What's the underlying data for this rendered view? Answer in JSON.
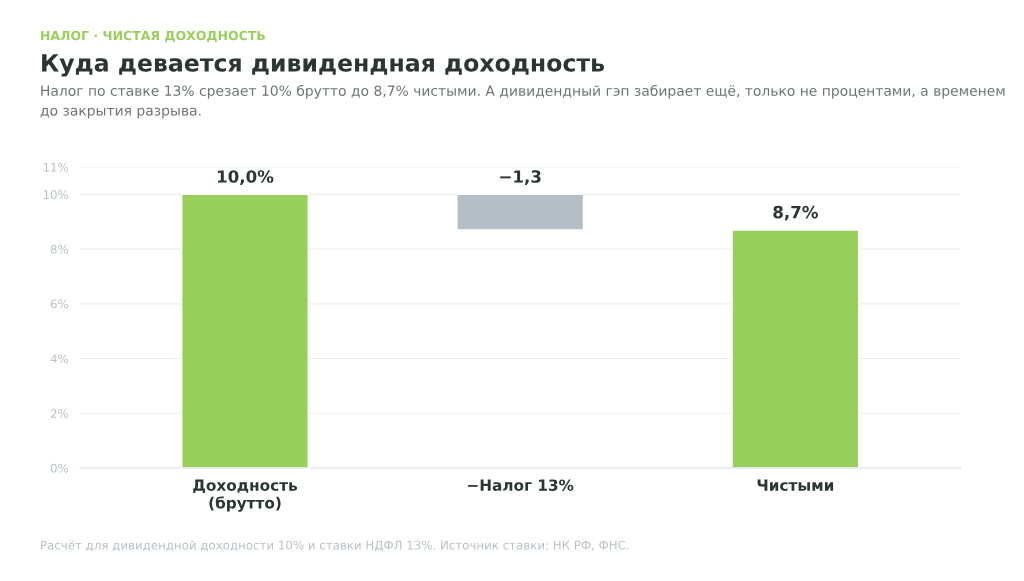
{
  "chart_data": {
    "type": "bar",
    "title": "Куда девается дивидендная доходность",
    "subtitle": "Налог по ставке 13% срезает 10% брутто до 8,7% чистыми. А дивидендный гэп забирает ещё, только не процентами, а временем до закрытия разрыва.",
    "annotations": [
      "НАЛОГ · ЧИСТАЯ ДОХОДНОСТЬ",
      "Расчёт для дивидендной доходности 10% и ставки НДФЛ 13%. Источник ставки: НК РФ, ФНС."
    ],
    "categories": [
      "Доходность\n(брутто)",
      "−Налог 13%",
      "Чистыми"
    ],
    "values": [
      10.0,
      -1.3,
      8.7
    ],
    "base": [
      0,
      10.0,
      0
    ],
    "colors": [
      "#97cf5a",
      "#b4bec5",
      "#97cf5a"
    ],
    "value_labels": [
      "10,0%",
      "−1,3",
      "8,7%"
    ],
    "ylim": [
      0,
      11
    ],
    "yticks": [
      {
        "value": 0,
        "label": "0%"
      },
      {
        "value": 2,
        "label": "2%"
      },
      {
        "value": 4,
        "label": "4%"
      },
      {
        "value": 6,
        "label": "6%"
      },
      {
        "value": 8,
        "label": "8%"
      },
      {
        "value": 10,
        "label": "10%"
      },
      {
        "value": 11,
        "label": "11%"
      }
    ],
    "grid": "y",
    "legend": false
  }
}
